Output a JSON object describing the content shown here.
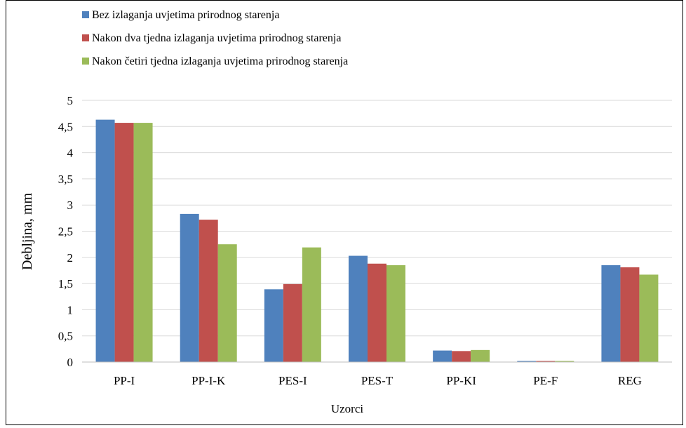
{
  "chart_data": {
    "type": "bar",
    "title": "",
    "xlabel": "Uzorci",
    "ylabel": "Debljina, mm",
    "ylim": [
      0,
      5
    ],
    "yticks": [
      "0",
      "0,5",
      "1",
      "1,5",
      "2",
      "2,5",
      "3",
      "3,5",
      "4",
      "4,5",
      "5"
    ],
    "grid": true,
    "legend_position": "top-left",
    "categories": [
      "PP-I",
      "PP-I-K",
      "PES-I",
      "PES-T",
      "PP-KI",
      "PE-F",
      "REG"
    ],
    "series": [
      {
        "name": "Bez izlaganja uvjetima prirodnog starenja",
        "color": "#4f81bd",
        "values": [
          4.63,
          2.83,
          1.39,
          2.03,
          0.22,
          0.02,
          1.85
        ]
      },
      {
        "name": "Nakon dva tjedna izlaganja uvjetima prirodnog starenja",
        "color": "#c0504d",
        "values": [
          4.57,
          2.72,
          1.49,
          1.88,
          0.21,
          0.02,
          1.81
        ]
      },
      {
        "name": "Nakon četiri tjedna izlaganja uvjetima prirodnog starenja",
        "color": "#9bbb59",
        "values": [
          4.57,
          2.25,
          2.19,
          1.85,
          0.23,
          0.02,
          1.67
        ]
      }
    ]
  }
}
